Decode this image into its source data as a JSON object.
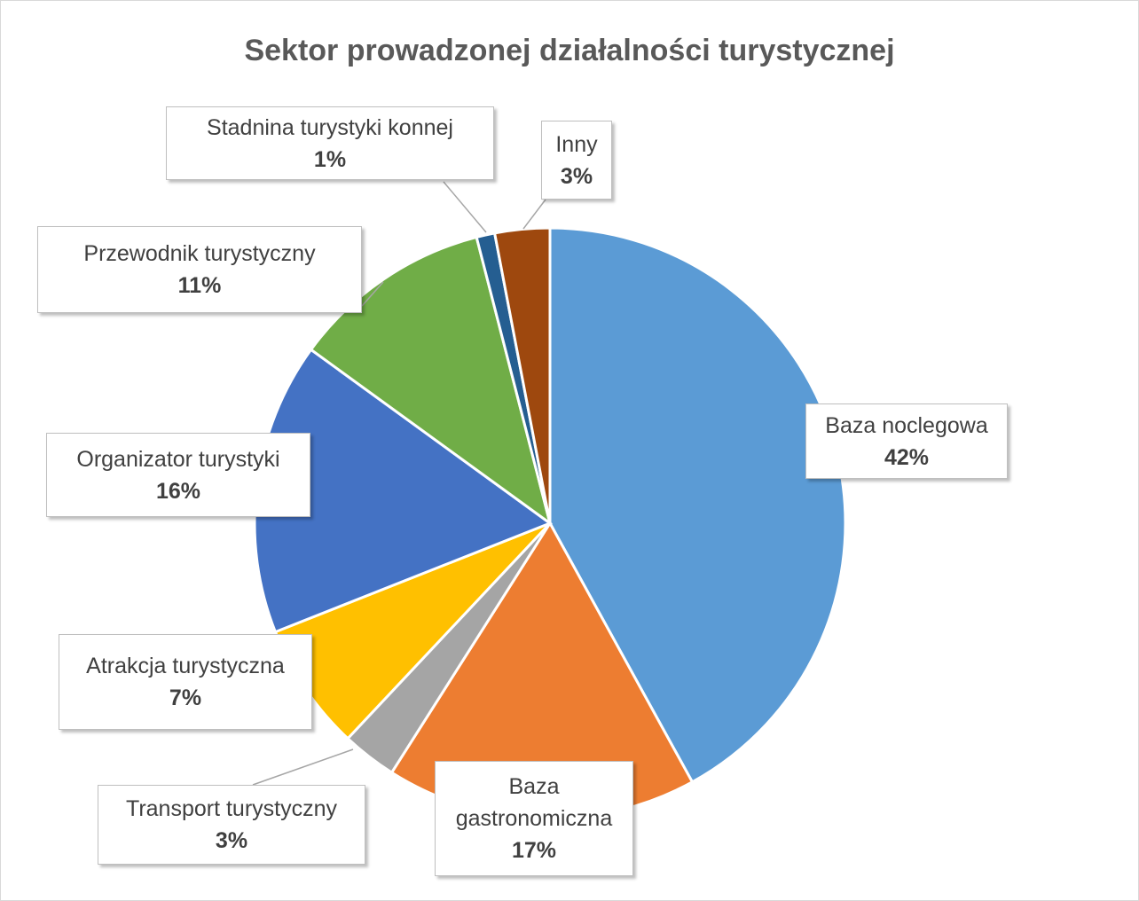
{
  "chart_data": {
    "type": "pie",
    "title": "Sektor prowadzonej działalności turystycznej",
    "categories": [
      "Baza noclegowa",
      "Baza gastronomiczna",
      "Transport turystyczny",
      "Atrakcja turystyczna",
      "Organizator turystyki",
      "Przewodnik turystyczny",
      "Stadnina turystyki konnej",
      "Inny"
    ],
    "values": [
      42,
      17,
      3,
      7,
      16,
      11,
      1,
      3
    ],
    "value_labels": [
      "42%",
      "17%",
      "3%",
      "7%",
      "16%",
      "11%",
      "1%",
      "3%"
    ],
    "colors": [
      "#5b9bd5",
      "#ed7d31",
      "#a5a5a5",
      "#ffc000",
      "#4472c4",
      "#70ad47",
      "#255e91",
      "#9e480e"
    ]
  }
}
